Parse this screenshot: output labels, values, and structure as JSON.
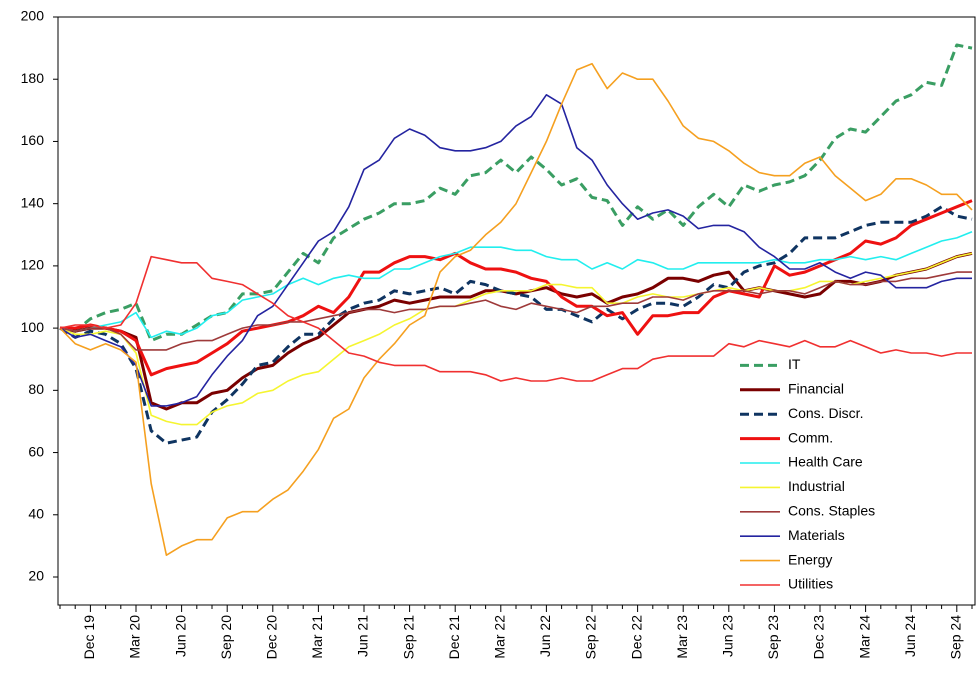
{
  "chart_data": {
    "type": "line",
    "categories": [
      null,
      null,
      "Dec 19",
      null,
      null,
      "Mar 20",
      null,
      null,
      "Jun 20",
      null,
      null,
      "Sep 20",
      null,
      null,
      "Dec 20",
      null,
      null,
      "Mar 21",
      null,
      null,
      "Jun 21",
      null,
      null,
      "Sep 21",
      null,
      null,
      "Dec 21",
      null,
      null,
      "Mar 22",
      null,
      null,
      "Jun 22",
      null,
      null,
      "Sep 22",
      null,
      null,
      "Dec 22",
      null,
      null,
      "Mar 23",
      null,
      null,
      "Jun 23",
      null,
      null,
      "Sep 23",
      null,
      null,
      "Dec 23",
      null,
      null,
      "Mar 24",
      null,
      null,
      "Jun 24",
      null,
      null,
      "Sep 24",
      null
    ],
    "ylim": [
      11,
      200
    ],
    "yticks": [
      20,
      40,
      60,
      80,
      100,
      120,
      140,
      160,
      180,
      200
    ],
    "grid": false,
    "legend": "lower right",
    "series": [
      {
        "name": "IT",
        "color": "#3a9e63",
        "width": 3,
        "dash": true,
        "values": [
          100,
          99,
          103,
          105,
          106,
          108,
          96,
          98,
          98,
          101,
          104,
          105,
          111,
          111,
          112,
          118,
          124,
          121,
          129,
          132,
          135,
          137,
          140,
          140,
          141,
          145,
          143,
          149,
          150,
          154,
          150,
          155,
          151,
          146,
          148,
          142,
          141,
          133,
          139,
          135,
          138,
          133,
          139,
          143,
          139,
          146,
          144,
          146,
          147,
          149,
          154,
          161,
          164,
          163,
          168,
          173,
          175,
          179,
          178,
          191,
          190
        ]
      },
      {
        "name": "Financial",
        "color": "#7a0000",
        "width": 3,
        "dash": false,
        "values": [
          100,
          99,
          100,
          100,
          99,
          97,
          76,
          74,
          76,
          76,
          79,
          80,
          84,
          87,
          88,
          92,
          95,
          97,
          101,
          105,
          106,
          107,
          109,
          108,
          109,
          110,
          110,
          110,
          112,
          112,
          111,
          112,
          113,
          111,
          110,
          111,
          108,
          110,
          111,
          113,
          116,
          116,
          115,
          117,
          118,
          112,
          113,
          112,
          111,
          110,
          111,
          115,
          115,
          114,
          115,
          117,
          118,
          119,
          121,
          123,
          124
        ]
      },
      {
        "name": "Cons. Discr.",
        "color": "#0f3461",
        "width": 3,
        "dash": true,
        "values": [
          100,
          97,
          99,
          98,
          95,
          87,
          67,
          63,
          64,
          65,
          73,
          77,
          82,
          88,
          89,
          94,
          98,
          98,
          103,
          106,
          108,
          109,
          112,
          111,
          112,
          113,
          111,
          115,
          114,
          112,
          111,
          110,
          106,
          106,
          104,
          102,
          106,
          103,
          106,
          108,
          108,
          107,
          110,
          114,
          113,
          118,
          120,
          121,
          124,
          129,
          129,
          129,
          131,
          133,
          134,
          134,
          134,
          136,
          139,
          136,
          135
        ]
      },
      {
        "name": "Comm.",
        "color": "#ee1111",
        "width": 3,
        "dash": false,
        "values": [
          100,
          100,
          101,
          100,
          99,
          96,
          85,
          87,
          88,
          89,
          92,
          95,
          99,
          100,
          101,
          102,
          104,
          107,
          105,
          110,
          118,
          118,
          121,
          123,
          123,
          122,
          124,
          121,
          119,
          119,
          118,
          116,
          115,
          110,
          107,
          107,
          104,
          105,
          98,
          104,
          104,
          105,
          105,
          110,
          112,
          111,
          110,
          120,
          117,
          118,
          120,
          122,
          124,
          128,
          127,
          129,
          133,
          135,
          137,
          139,
          141
        ]
      },
      {
        "name": "Health Care",
        "color": "#22eeee",
        "width": 1.6,
        "dash": false,
        "values": [
          100,
          99,
          100,
          101,
          102,
          105,
          97,
          99,
          98,
          100,
          104,
          105,
          109,
          110,
          111,
          114,
          116,
          114,
          116,
          117,
          116,
          116,
          119,
          119,
          121,
          123,
          124,
          126,
          126,
          126,
          125,
          125,
          123,
          122,
          122,
          119,
          121,
          119,
          122,
          121,
          119,
          119,
          121,
          121,
          121,
          121,
          121,
          122,
          121,
          121,
          122,
          122,
          123,
          122,
          123,
          122,
          124,
          126,
          128,
          129,
          131
        ]
      },
      {
        "name": "Industrial",
        "color": "#f5f530",
        "width": 1.6,
        "dash": false,
        "values": [
          100,
          98,
          98,
          99,
          98,
          92,
          72,
          70,
          69,
          69,
          73,
          75,
          76,
          79,
          80,
          83,
          85,
          86,
          90,
          94,
          96,
          98,
          101,
          103,
          106,
          107,
          107,
          109,
          111,
          112,
          112,
          112,
          114,
          114,
          113,
          113,
          108,
          108,
          110,
          111,
          110,
          110,
          111,
          112,
          113,
          112,
          113,
          112,
          112,
          113,
          115,
          115,
          114,
          115,
          116,
          117,
          118,
          119,
          121,
          123,
          124
        ]
      },
      {
        "name": "Cons. Staples",
        "color": "#9e3a3a",
        "width": 1.6,
        "dash": false,
        "values": [
          100,
          99,
          100,
          100,
          98,
          93,
          93,
          93,
          95,
          96,
          96,
          98,
          100,
          101,
          101,
          102,
          102,
          103,
          104,
          105,
          106,
          106,
          105,
          106,
          106,
          107,
          107,
          108,
          109,
          107,
          106,
          108,
          107,
          106,
          105,
          107,
          107,
          108,
          108,
          110,
          110,
          109,
          111,
          112,
          112,
          112,
          111,
          112,
          112,
          111,
          113,
          115,
          114,
          114,
          115,
          115,
          116,
          116,
          117,
          118,
          118
        ]
      },
      {
        "name": "Materials",
        "color": "#2424a0",
        "width": 1.6,
        "dash": false,
        "values": [
          100,
          97,
          98,
          96,
          94,
          88,
          75,
          75,
          76,
          78,
          85,
          91,
          96,
          104,
          107,
          114,
          121,
          128,
          131,
          139,
          151,
          154,
          161,
          164,
          162,
          158,
          157,
          157,
          158,
          160,
          165,
          168,
          175,
          172,
          158,
          154,
          146,
          140,
          135,
          137,
          138,
          136,
          132,
          133,
          133,
          131,
          126,
          123,
          119,
          119,
          121,
          118,
          116,
          118,
          117,
          113,
          113,
          113,
          115,
          116,
          116
        ]
      },
      {
        "name": "Energy",
        "color": "#f5a020",
        "width": 1.6,
        "dash": false,
        "values": [
          100,
          95,
          93,
          95,
          93,
          89,
          50,
          27,
          30,
          32,
          32,
          39,
          41,
          41,
          45,
          48,
          54,
          61,
          71,
          74,
          84,
          90,
          95,
          101,
          104,
          118,
          123,
          125,
          130,
          134,
          140,
          150,
          160,
          172,
          183,
          185,
          177,
          182,
          180,
          180,
          173,
          165,
          161,
          160,
          157,
          153,
          150,
          149,
          149,
          153,
          155,
          149,
          145,
          141,
          143,
          148,
          148,
          146,
          143,
          143,
          138
        ]
      },
      {
        "name": "Utilities",
        "color": "#f03030",
        "width": 1.6,
        "dash": false,
        "values": [
          100,
          101,
          101,
          100,
          101,
          108,
          123,
          122,
          121,
          121,
          116,
          115,
          114,
          111,
          108,
          104,
          102,
          100,
          96,
          92,
          91,
          89,
          88,
          88,
          88,
          86,
          86,
          86,
          85,
          83,
          84,
          83,
          83,
          84,
          83,
          83,
          85,
          87,
          87,
          90,
          91,
          91,
          91,
          91,
          95,
          94,
          96,
          95,
          94,
          96,
          94,
          94,
          96,
          94,
          92,
          93,
          92,
          92,
          91,
          92,
          92
        ]
      }
    ]
  }
}
